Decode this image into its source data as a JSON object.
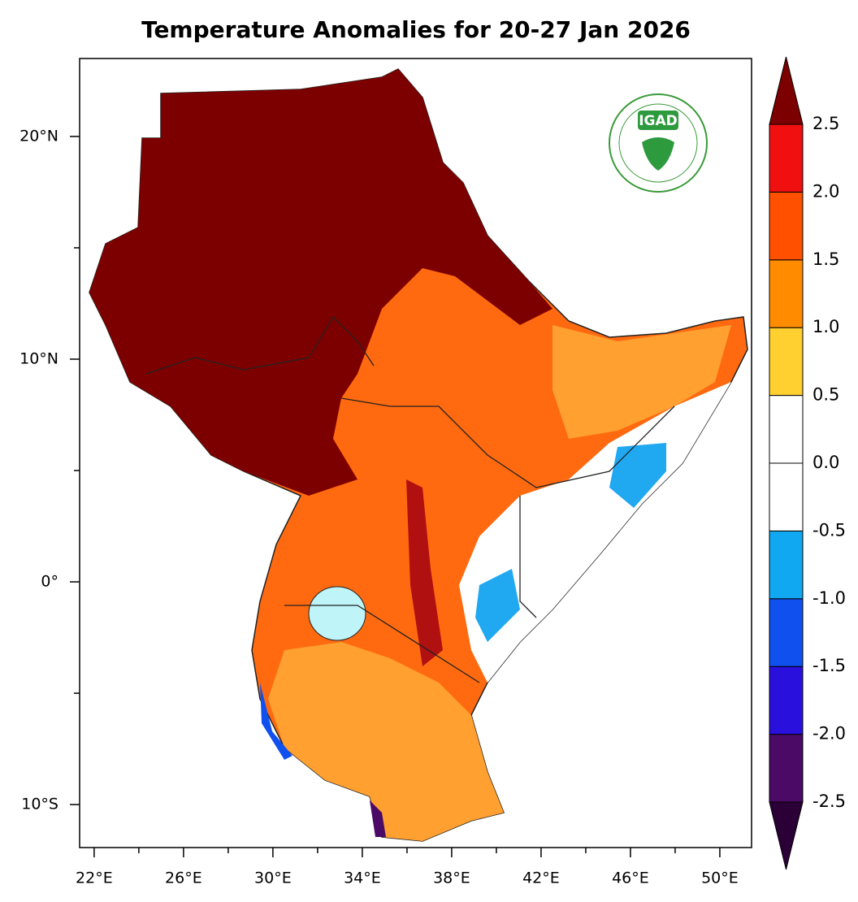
{
  "chart_data": {
    "type": "map",
    "title": "Temperature Anomalies for 20-27 Jan 2026",
    "logo": "IGAD",
    "xlim": [
      21.35,
      51.42
    ],
    "ylim": [
      -11.93,
      23.5
    ],
    "xticks": [
      {
        "value": 22,
        "label": "22°E"
      },
      {
        "value": 26,
        "label": "26°E"
      },
      {
        "value": 30,
        "label": "30°E"
      },
      {
        "value": 34,
        "label": "34°E"
      },
      {
        "value": 38,
        "label": "38°E"
      },
      {
        "value": 42,
        "label": "42°E"
      },
      {
        "value": 46,
        "label": "46°E"
      },
      {
        "value": 50,
        "label": "50°E"
      }
    ],
    "xminorticks": [
      24,
      28,
      32,
      36,
      40,
      44,
      48
    ],
    "yticks": [
      {
        "value": 20,
        "label": "20°N"
      },
      {
        "value": 10,
        "label": "10°N"
      },
      {
        "value": 0,
        "label": "0°"
      },
      {
        "value": -10,
        "label": "10°S"
      }
    ],
    "yminorticks": [
      15,
      5,
      -5
    ],
    "colorbar": {
      "levels": [
        {
          "value": -2.5,
          "label": "-2.5"
        },
        {
          "value": -2,
          "label": "-2.0"
        },
        {
          "value": -1.5,
          "label": "-1.5"
        },
        {
          "value": -1,
          "label": "-1.0"
        },
        {
          "value": -0.5,
          "label": "-0.5"
        },
        {
          "value": 0,
          "label": "0.0"
        },
        0.5,
        {
          "value": 1,
          "label": "1.0"
        },
        1.5,
        {
          "value": 2,
          "label": "2.0"
        },
        2.5
      ],
      "colors": [
        "#2b0036",
        "#4a0a66",
        "#2a10dd",
        "#1050ee",
        "#10a8f0",
        "#ffffff",
        "#ffffff",
        "#ffd030",
        "#ff8c00",
        "#ff5000",
        "#f01010",
        "#7d0000"
      ]
    }
  }
}
